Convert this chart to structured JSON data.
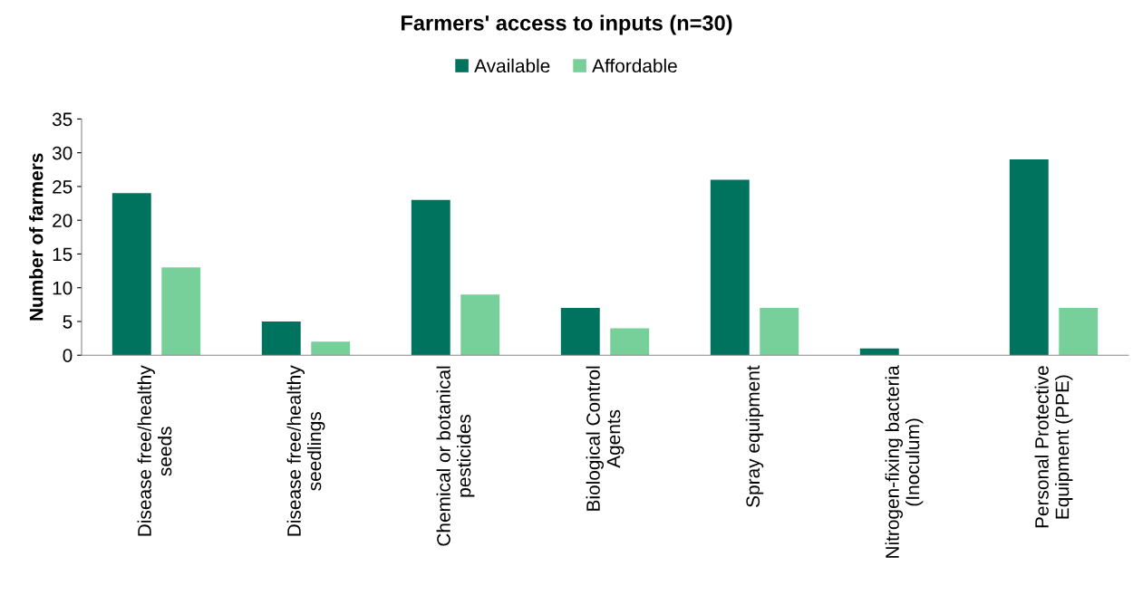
{
  "chart_data": {
    "type": "bar",
    "title": "Farmers' access to inputs (n=30)",
    "ylabel": "Number of farmers",
    "categories": [
      "Disease free/healthy\nseeds",
      "Disease free/healthy\nseedlings",
      "Chemical or botanical\npesticides",
      "Biological Control\nAgents",
      "Spray equipment",
      "Nitrogen-fixing bacteria\n(Inoculum)",
      "Personal Protective\nEquipment (PPE)"
    ],
    "series": [
      {
        "name": "Available",
        "color": "#00735f",
        "values": [
          24,
          5,
          23,
          7,
          26,
          1,
          29
        ]
      },
      {
        "name": "Affordable",
        "color": "#77cf9a",
        "values": [
          13,
          2,
          9,
          4,
          7,
          0,
          7
        ]
      }
    ],
    "ylim": [
      0,
      35
    ],
    "yticks": [
      0,
      5,
      10,
      15,
      20,
      25,
      30,
      35
    ],
    "grid": false,
    "legend": "top"
  }
}
